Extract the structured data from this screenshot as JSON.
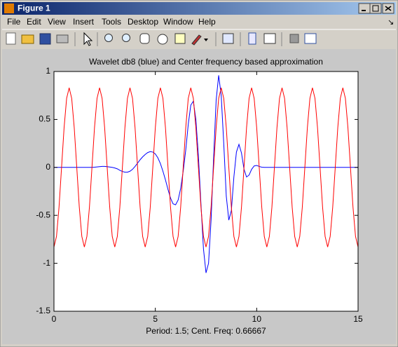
{
  "window": {
    "title": "Figure 1"
  },
  "menu": [
    "File",
    "Edit",
    "View",
    "Insert",
    "Tools",
    "Desktop",
    "Window",
    "Help"
  ],
  "chart_data": {
    "type": "line",
    "title": "Wavelet db8 (blue) and Center frequency based approximation",
    "xlabel": "Period: 1.5; Cent. Freq: 0.66667",
    "xlim": [
      0,
      15
    ],
    "ylim": [
      -1.5,
      1
    ],
    "xticks": [
      0,
      5,
      10,
      15
    ],
    "yticks": [
      -1.5,
      -1,
      -0.5,
      0,
      0.5,
      1
    ],
    "x": [
      0,
      0.125,
      0.25,
      0.375,
      0.5,
      0.625,
      0.75,
      0.875,
      1,
      1.125,
      1.25,
      1.375,
      1.5,
      1.625,
      1.75,
      1.875,
      2,
      2.125,
      2.25,
      2.375,
      2.5,
      2.625,
      2.75,
      2.875,
      3,
      3.125,
      3.25,
      3.375,
      3.5,
      3.625,
      3.75,
      3.875,
      4,
      4.125,
      4.25,
      4.375,
      4.5,
      4.625,
      4.75,
      4.875,
      5,
      5.125,
      5.25,
      5.375,
      5.5,
      5.625,
      5.75,
      5.875,
      6,
      6.125,
      6.25,
      6.375,
      6.5,
      6.625,
      6.75,
      6.875,
      7,
      7.125,
      7.25,
      7.375,
      7.5,
      7.625,
      7.75,
      7.875,
      8,
      8.125,
      8.25,
      8.375,
      8.5,
      8.625,
      8.75,
      8.875,
      9,
      9.125,
      9.25,
      9.375,
      9.5,
      9.625,
      9.75,
      9.875,
      10,
      10.125,
      10.25,
      10.375,
      10.5,
      10.625,
      10.75,
      10.875,
      11,
      11.125,
      11.25,
      11.375,
      11.5,
      11.625,
      11.75,
      11.875,
      12,
      12.125,
      12.25,
      12.375,
      12.5,
      12.625,
      12.75,
      12.875,
      13,
      13.125,
      13.25,
      13.375,
      13.5,
      13.625,
      13.75,
      13.875,
      14,
      14.125,
      14.25,
      14.375,
      14.5,
      14.625,
      14.75,
      14.875,
      15
    ],
    "series": [
      {
        "color": "#0000ff",
        "values": [
          0,
          0,
          0,
          0,
          0,
          0,
          0,
          0,
          0,
          0,
          0,
          0,
          0,
          0,
          0,
          0,
          0.002,
          0.005,
          0.008,
          0.01,
          0.01,
          0.008,
          0.004,
          0,
          -0.006,
          -0.015,
          -0.03,
          -0.042,
          -0.05,
          -0.05,
          -0.04,
          -0.02,
          0.01,
          0.045,
          0.08,
          0.11,
          0.135,
          0.155,
          0.165,
          0.16,
          0.14,
          0.1,
          0.04,
          -0.04,
          -0.13,
          -0.23,
          -0.32,
          -0.38,
          -0.39,
          -0.34,
          -0.22,
          -0.04,
          0.18,
          0.45,
          0.65,
          0.69,
          0.5,
          0.12,
          -0.38,
          -0.85,
          -1.1,
          -1.0,
          -0.55,
          0.1,
          0.7,
          0.96,
          0.75,
          0.25,
          -0.3,
          -0.55,
          -0.45,
          -0.1,
          0.16,
          0.24,
          0.15,
          -0.02,
          -0.1,
          -0.08,
          -0.02,
          0.015,
          0.02,
          0.01,
          0.002,
          0,
          0,
          0,
          0,
          0,
          0,
          0,
          0,
          0,
          0,
          0,
          0,
          0,
          0,
          0,
          0,
          0,
          0,
          0,
          0,
          0,
          0,
          0,
          0,
          0,
          0,
          0,
          0,
          0,
          0,
          0,
          0,
          0,
          0,
          0,
          0,
          0,
          0
        ]
      },
      {
        "color": "#ff0000",
        "values": [
          -0.83,
          -0.72,
          -0.415,
          0,
          0.415,
          0.72,
          0.83,
          0.72,
          0.415,
          0,
          -0.415,
          -0.72,
          -0.83,
          -0.72,
          -0.415,
          0,
          0.415,
          0.72,
          0.83,
          0.72,
          0.415,
          0,
          -0.415,
          -0.72,
          -0.83,
          -0.72,
          -0.415,
          0,
          0.415,
          0.72,
          0.83,
          0.72,
          0.415,
          0,
          -0.415,
          -0.72,
          -0.83,
          -0.72,
          -0.415,
          0,
          0.415,
          0.72,
          0.83,
          0.72,
          0.415,
          0,
          -0.415,
          -0.72,
          -0.83,
          -0.72,
          -0.415,
          0,
          0.415,
          0.72,
          0.83,
          0.72,
          0.415,
          0,
          -0.415,
          -0.72,
          -0.83,
          -0.72,
          -0.415,
          0,
          0.415,
          0.72,
          0.83,
          0.72,
          0.415,
          0,
          -0.415,
          -0.72,
          -0.83,
          -0.72,
          -0.415,
          0,
          0.415,
          0.72,
          0.83,
          0.72,
          0.415,
          0,
          -0.415,
          -0.72,
          -0.83,
          -0.72,
          -0.415,
          0,
          0.415,
          0.72,
          0.83,
          0.72,
          0.415,
          0,
          -0.415,
          -0.72,
          -0.83,
          -0.72,
          -0.415,
          0,
          0.415,
          0.72,
          0.83,
          0.72,
          0.415,
          0,
          -0.415,
          -0.72,
          -0.83,
          -0.72,
          -0.415,
          0,
          0.415,
          0.72,
          0.83,
          0.72,
          0.415,
          0,
          -0.415,
          -0.72,
          -0.83
        ]
      }
    ]
  }
}
